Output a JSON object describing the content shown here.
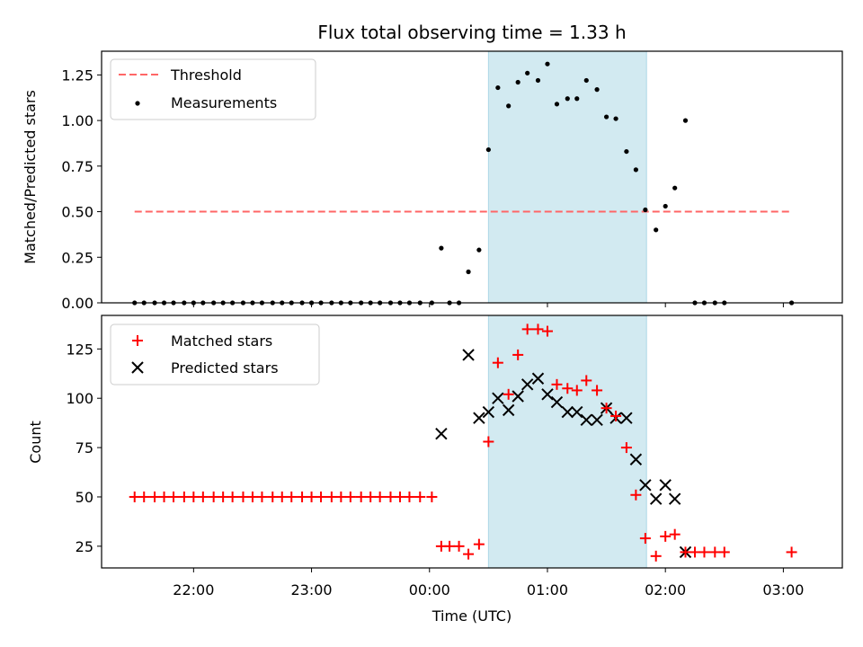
{
  "chart_data": {
    "title": "Flux total observing time = 1.33 h",
    "xlabel": "Time (UTC)",
    "xlim_hours": [
      21.22,
      27.5
    ],
    "xticks": [
      {
        "h": 22,
        "label": "22:00"
      },
      {
        "h": 23,
        "label": "23:00"
      },
      {
        "h": 24,
        "label": "00:00"
      },
      {
        "h": 25,
        "label": "01:00"
      },
      {
        "h": 26,
        "label": "02:00"
      },
      {
        "h": 27,
        "label": "03:00"
      }
    ],
    "shaded_span_hours": [
      24.5,
      25.84
    ],
    "colors": {
      "span": "#add8e6",
      "threshold": "#ff6666",
      "measurement": "#000000",
      "matched": "#ff0000",
      "predicted": "#000000"
    },
    "top": {
      "type": "scatter",
      "ylabel": "Matched/Predicted stars",
      "ylim": [
        0,
        1.38
      ],
      "yticks": [
        {
          "v": 0,
          "label": "0.00"
        },
        {
          "v": 0.25,
          "label": "0.25"
        },
        {
          "v": 0.5,
          "label": "0.50"
        },
        {
          "v": 0.75,
          "label": "0.75"
        },
        {
          "v": 1.0,
          "label": "1.00"
        },
        {
          "v": 1.25,
          "label": "1.25"
        }
      ],
      "threshold": {
        "name": "Threshold",
        "y": 0.5,
        "x": [
          21.5,
          27.07
        ]
      },
      "legend_position": "upper-left",
      "series": [
        {
          "name": "Measurements",
          "x": [
            21.5,
            21.58,
            21.67,
            21.75,
            21.83,
            21.92,
            22.0,
            22.08,
            22.17,
            22.25,
            22.33,
            22.42,
            22.5,
            22.58,
            22.67,
            22.75,
            22.83,
            22.92,
            23.0,
            23.08,
            23.17,
            23.25,
            23.33,
            23.42,
            23.5,
            23.58,
            23.67,
            23.75,
            23.83,
            23.92,
            24.02,
            24.1,
            24.17,
            24.25,
            24.33,
            24.42,
            24.5,
            24.58,
            24.67,
            24.75,
            24.83,
            24.92,
            25.0,
            25.08,
            25.17,
            25.25,
            25.33,
            25.42,
            25.5,
            25.58,
            25.67,
            25.75,
            25.83,
            25.92,
            26.0,
            26.08,
            26.17,
            26.25,
            26.33,
            26.42,
            26.5,
            27.07
          ],
          "y": [
            0,
            0,
            0,
            0,
            0,
            0,
            0,
            0,
            0,
            0,
            0,
            0,
            0,
            0,
            0,
            0,
            0,
            0,
            0,
            0,
            0,
            0,
            0,
            0,
            0,
            0,
            0,
            0,
            0,
            0,
            0,
            0.3,
            0,
            0,
            0.17,
            0.29,
            0.84,
            1.18,
            1.08,
            1.21,
            1.26,
            1.22,
            1.31,
            1.09,
            1.12,
            1.12,
            1.22,
            1.17,
            1.02,
            1.01,
            0.83,
            0.73,
            0.51,
            0.4,
            0.53,
            0.63,
            1.0,
            0,
            0,
            0,
            0,
            0
          ]
        }
      ]
    },
    "bottom": {
      "type": "scatter",
      "ylabel": "Count",
      "ylim": [
        14,
        142
      ],
      "yticks": [
        {
          "v": 25,
          "label": "25"
        },
        {
          "v": 50,
          "label": "50"
        },
        {
          "v": 75,
          "label": "75"
        },
        {
          "v": 100,
          "label": "100"
        },
        {
          "v": 125,
          "label": "125"
        }
      ],
      "legend_position": "upper-left",
      "series": [
        {
          "name": "Matched stars",
          "marker": "plus",
          "x": [
            21.5,
            21.58,
            21.67,
            21.75,
            21.83,
            21.92,
            22.0,
            22.08,
            22.17,
            22.25,
            22.33,
            22.42,
            22.5,
            22.58,
            22.67,
            22.75,
            22.83,
            22.92,
            23.0,
            23.08,
            23.17,
            23.25,
            23.33,
            23.42,
            23.5,
            23.58,
            23.67,
            23.75,
            23.83,
            23.92,
            24.02,
            24.1,
            24.17,
            24.25,
            24.33,
            24.42,
            24.5,
            24.58,
            24.67,
            24.75,
            24.83,
            24.92,
            25.0,
            25.08,
            25.17,
            25.25,
            25.33,
            25.42,
            25.5,
            25.58,
            25.67,
            25.75,
            25.83,
            25.92,
            26.0,
            26.08,
            26.17,
            26.25,
            26.33,
            26.42,
            26.5,
            27.07
          ],
          "y": [
            50,
            50,
            50,
            50,
            50,
            50,
            50,
            50,
            50,
            50,
            50,
            50,
            50,
            50,
            50,
            50,
            50,
            50,
            50,
            50,
            50,
            50,
            50,
            50,
            50,
            50,
            50,
            50,
            50,
            50,
            50,
            25,
            25,
            25,
            21,
            26,
            78,
            118,
            102,
            122,
            135,
            135,
            134,
            107,
            105,
            104,
            109,
            104,
            95,
            91,
            75,
            51,
            29,
            20,
            30,
            31,
            22,
            22,
            22,
            22,
            22,
            22
          ]
        },
        {
          "name": "Predicted stars",
          "marker": "cross",
          "x": [
            24.1,
            24.33,
            24.42,
            24.5,
            24.58,
            24.67,
            24.75,
            24.83,
            24.92,
            25.0,
            25.08,
            25.17,
            25.25,
            25.33,
            25.42,
            25.5,
            25.58,
            25.67,
            25.75,
            25.83,
            25.92,
            26.0,
            26.08,
            26.17
          ],
          "y": [
            82,
            122,
            90,
            93,
            100,
            94,
            101,
            107,
            110,
            102,
            98,
            93,
            93,
            89,
            89,
            95,
            90,
            90,
            69,
            56,
            49,
            56,
            49,
            22
          ]
        }
      ]
    }
  }
}
